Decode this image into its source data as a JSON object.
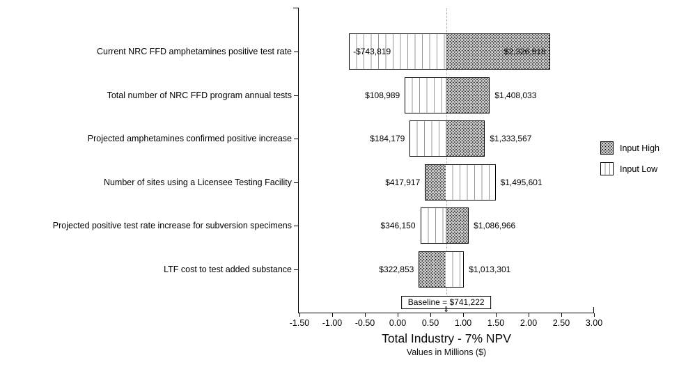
{
  "chart_data": {
    "type": "bar",
    "variant": "tornado-sensitivity",
    "title": "Total Industry - 7% NPV",
    "subtitle": "Values in Millions ($)",
    "baseline": {
      "label": "Baseline = $741,222",
      "value_millions": 0.741222
    },
    "x_axis": {
      "min": -1.5,
      "max": 3.0,
      "tick_step": 0.5,
      "tick_labels": [
        "-1.50",
        "-1.00",
        "-0.50",
        "0.00",
        "0.50",
        "1.00",
        "1.50",
        "2.00",
        "2.50",
        "3.00"
      ]
    },
    "legend": [
      {
        "label": "Input High",
        "pattern": "dots"
      },
      {
        "label": "Input Low",
        "pattern": "vlines"
      }
    ],
    "bars": [
      {
        "label": "Current NRC FFD amphetamines positive test rate",
        "left_value": -0.743819,
        "right_value": 2.326918,
        "left_text": "-$743,819",
        "right_text": "$2,326,918",
        "left_pattern": "low",
        "right_pattern": "high",
        "labels_inside": true
      },
      {
        "label": "Total number of NRC FFD program annual tests",
        "left_value": 0.108989,
        "right_value": 1.408033,
        "left_text": "$108,989",
        "right_text": "$1,408,033",
        "left_pattern": "low",
        "right_pattern": "high",
        "labels_inside": false
      },
      {
        "label": "Projected amphetamines confirmed positive increase",
        "left_value": 0.184179,
        "right_value": 1.333567,
        "left_text": "$184,179",
        "right_text": "$1,333,567",
        "left_pattern": "low",
        "right_pattern": "high",
        "labels_inside": false
      },
      {
        "label": "Number of sites using a Licensee Testing Facility",
        "left_value": 0.417917,
        "right_value": 1.495601,
        "left_text": "$417,917",
        "right_text": "$1,495,601",
        "left_pattern": "high",
        "right_pattern": "low",
        "labels_inside": false
      },
      {
        "label": "Projected positive test rate increase for subversion specimens",
        "left_value": 0.34615,
        "right_value": 1.086966,
        "left_text": "$346,150",
        "right_text": "$1,086,966",
        "left_pattern": "low",
        "right_pattern": "high",
        "labels_inside": false
      },
      {
        "label": "LTF cost to test added substance",
        "left_value": 0.322853,
        "right_value": 1.013301,
        "left_text": "$322,853",
        "right_text": "$1,013,301",
        "left_pattern": "high",
        "right_pattern": "low",
        "labels_inside": false
      }
    ],
    "colors": {
      "high_fill": "#cdcdcd",
      "high_dot": "#000000",
      "low_fill": "#ffffff",
      "low_line": "#979797",
      "bar_border": "#000000",
      "baseline_dotted": "#a8a8a8",
      "text": "#000000"
    },
    "icons": {
      "baseline_arrow": "⇓"
    }
  }
}
